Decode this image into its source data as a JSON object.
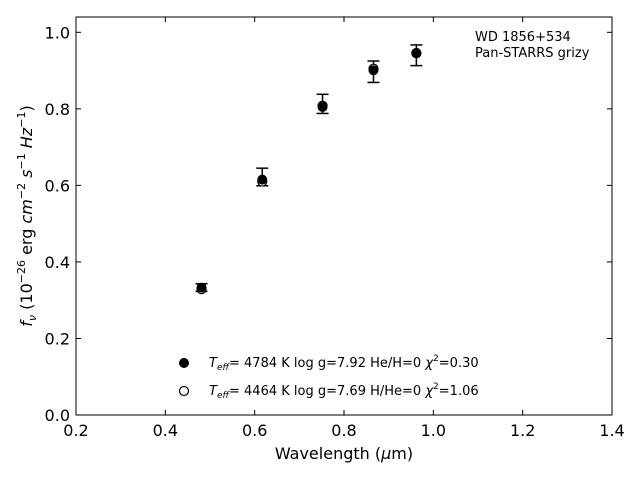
{
  "chart_data": {
    "type": "scatter",
    "xlabel": "Wavelength (μm)",
    "ylabel": "f_ν (10^−26 erg cm^−2 s^−1 Hz^−1)",
    "xlim": [
      0.2,
      1.4
    ],
    "ylim": [
      0.0,
      1.04
    ],
    "x_ticks": [
      "0.2",
      "0.4",
      "0.6",
      "0.8",
      "1.0",
      "1.2",
      "1.4"
    ],
    "y_ticks": [
      "0.0",
      "0.2",
      "0.4",
      "0.6",
      "0.8",
      "1.0"
    ],
    "grid": false,
    "annotation": [
      "WD 1856+534",
      "Pan-STARRS grizy"
    ],
    "observed": {
      "x": [
        0.481,
        0.617,
        0.752,
        0.866,
        0.962
      ],
      "y": [
        0.333,
        0.622,
        0.813,
        0.897,
        0.94
      ],
      "yerr": [
        0.01,
        0.023,
        0.025,
        0.028,
        0.027
      ]
    },
    "series": [
      {
        "marker": "filled-circle",
        "legend_label": {
          "teff_val": "4784 K",
          "logg": "log g=7.92",
          "comp": "He/H=0",
          "chi": "=0.30"
        },
        "x": [
          0.481,
          0.617,
          0.752,
          0.866,
          0.962
        ],
        "y": [
          0.333,
          0.615,
          0.805,
          0.901,
          0.945
        ]
      },
      {
        "marker": "open-circle",
        "legend_label": {
          "teff_val": "4464 K",
          "logg": "log g=7.69",
          "comp": "H/He=0",
          "chi": "=1.06"
        },
        "x": [
          0.481,
          0.617,
          0.752,
          0.866,
          0.962
        ],
        "y": [
          0.329,
          0.61,
          0.808,
          0.905,
          0.946
        ]
      }
    ],
    "legend_placement": "lower-center"
  }
}
